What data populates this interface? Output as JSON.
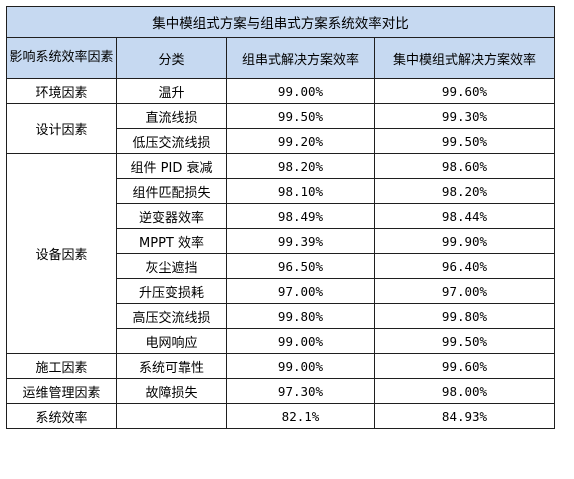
{
  "table": {
    "title": "集中模组式方案与组串式方案系统效率对比",
    "headers": [
      "影响系统效率因素",
      "分类",
      "组串式解决方案效率",
      "集中模组式解决方案效率"
    ],
    "groups": {
      "environment": "环境因素",
      "design": "设计因素",
      "equipment": "设备因素",
      "construction": "施工因素",
      "operation": "运维管理因素",
      "system": "系统效率"
    },
    "rows": [
      {
        "category": "温升",
        "string": "99.00%",
        "central": "99.60%"
      },
      {
        "category": "直流线损",
        "string": "99.50%",
        "central": "99.30%"
      },
      {
        "category": "低压交流线损",
        "string": "99.20%",
        "central": "99.50%"
      },
      {
        "category": "组件 PID 衰减",
        "string": "98.20%",
        "central": "98.60%"
      },
      {
        "category": "组件匹配损失",
        "string": "98.10%",
        "central": "98.20%"
      },
      {
        "category": "逆变器效率",
        "string": "98.49%",
        "central": "98.44%"
      },
      {
        "category": "MPPT 效率",
        "string": "99.39%",
        "central": "99.90%"
      },
      {
        "category": "灰尘遮挡",
        "string": "96.50%",
        "central": "96.40%"
      },
      {
        "category": "升压变损耗",
        "string": "97.00%",
        "central": "97.00%"
      },
      {
        "category": "高压交流线损",
        "string": "99.80%",
        "central": "99.80%"
      },
      {
        "category": "电网响应",
        "string": "99.00%",
        "central": "99.50%"
      },
      {
        "category": "系统可靠性",
        "string": "99.00%",
        "central": "99.60%"
      },
      {
        "category": "故障损失",
        "string": "97.30%",
        "central": "98.00%"
      },
      {
        "category": "",
        "string": "82.1%",
        "central": "84.93%"
      }
    ]
  }
}
